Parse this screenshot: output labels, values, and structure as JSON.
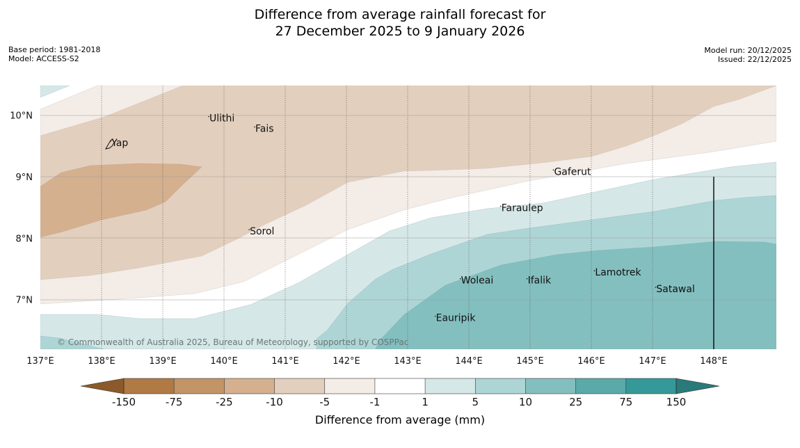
{
  "title": {
    "line1": "Difference from average rainfall forecast for",
    "line2": "27 December 2025 to 9 January 2026"
  },
  "meta_left": {
    "base_period": "Base period: 1981-2018",
    "model": "Model: ACCESS-S2"
  },
  "meta_right": {
    "model_run": "Model run: 20/12/2025",
    "issued": "Issued: 22/12/2025"
  },
  "map": {
    "lat_labels": [
      {
        "label": "10°N",
        "lat": 10
      },
      {
        "label": "9°N",
        "lat": 9
      },
      {
        "label": "8°N",
        "lat": 8
      },
      {
        "label": "7°N",
        "lat": 7
      }
    ],
    "lon_labels": [
      {
        "label": "137°E",
        "lon": 137
      },
      {
        "label": "138°E",
        "lon": 138
      },
      {
        "label": "139°E",
        "lon": 139
      },
      {
        "label": "140°E",
        "lon": 140
      },
      {
        "label": "141°E",
        "lon": 141
      },
      {
        "label": "142°E",
        "lon": 142
      },
      {
        "label": "143°E",
        "lon": 143
      },
      {
        "label": "144°E",
        "lon": 144
      },
      {
        "label": "145°E",
        "lon": 145
      },
      {
        "label": "146°E",
        "lon": 146
      },
      {
        "label": "147°E",
        "lon": 147
      },
      {
        "label": "148°E",
        "lon": 148
      }
    ],
    "places": [
      {
        "name": "Ulithi",
        "lon": 139.75,
        "lat": 9.9
      },
      {
        "name": "Fais",
        "lon": 140.5,
        "lat": 9.73
      },
      {
        "name": "Yap",
        "lon": 138.15,
        "lat": 9.5
      },
      {
        "name": "Gaferut",
        "lon": 145.38,
        "lat": 9.03
      },
      {
        "name": "Faraulep",
        "lon": 144.52,
        "lat": 8.44
      },
      {
        "name": "Sorol",
        "lon": 140.41,
        "lat": 8.06
      },
      {
        "name": "Lamotrek",
        "lon": 146.05,
        "lat": 7.39
      },
      {
        "name": "Woleai",
        "lon": 143.86,
        "lat": 7.26
      },
      {
        "name": "Ifalik",
        "lon": 144.95,
        "lat": 7.26
      },
      {
        "name": "Satawal",
        "lon": 147.05,
        "lat": 7.12
      },
      {
        "name": "Eauripik",
        "lon": 143.45,
        "lat": 6.65
      }
    ],
    "copyright": "© Commonwealth of Australia 2025, Bureau of Meteorology, supported by COSPPac"
  },
  "colorbar": {
    "title": "Difference from average (mm)",
    "ticks": [
      "-150",
      "-75",
      "-25",
      "-10",
      "-5",
      "-1",
      "1",
      "5",
      "10",
      "25",
      "75",
      "150"
    ],
    "colors": [
      "#8c5a2a",
      "#b07a44",
      "#c29466",
      "#d4b08e",
      "#e3cfbd",
      "#f4ece6",
      "#ffffff",
      "#d5e8e7",
      "#aed5d5",
      "#84bfbf",
      "#5aaaaa",
      "#369999",
      "#2a7a7a"
    ]
  }
}
